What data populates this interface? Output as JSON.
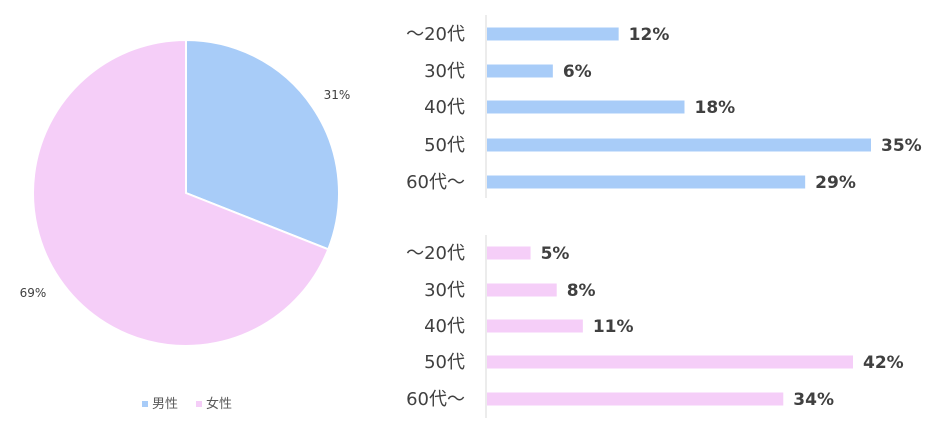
{
  "colors": {
    "male": "#a8ccf8",
    "female": "#f5cef8",
    "axis": "#d9d9d9",
    "slice_border": "#ffffff"
  },
  "chart_data": [
    {
      "type": "pie",
      "slices": [
        {
          "label": "男性",
          "value": 31,
          "data_label": "31%",
          "color": "#a8ccf8"
        },
        {
          "label": "女性",
          "value": 69,
          "data_label": "69%",
          "color": "#f5cef8"
        }
      ],
      "legend": {
        "position": "bottom",
        "entries": [
          "男性",
          "女性"
        ]
      }
    },
    {
      "type": "bar",
      "orientation": "horizontal",
      "categories": [
        "～20代",
        "30代",
        "40代",
        "50代",
        "60代～"
      ],
      "values": [
        12,
        6,
        18,
        35,
        29
      ],
      "data_labels": [
        "12%",
        "6%",
        "18%",
        "35%",
        "29%"
      ],
      "color": "#a8ccf8",
      "xlim": [
        0,
        35
      ]
    },
    {
      "type": "bar",
      "orientation": "horizontal",
      "categories": [
        "～20代",
        "30代",
        "40代",
        "50代",
        "60代～"
      ],
      "values": [
        5,
        8,
        11,
        42,
        34
      ],
      "data_labels": [
        "5%",
        "8%",
        "11%",
        "42%",
        "34%"
      ],
      "color": "#f5cef8",
      "xlim": [
        0,
        42
      ]
    }
  ]
}
